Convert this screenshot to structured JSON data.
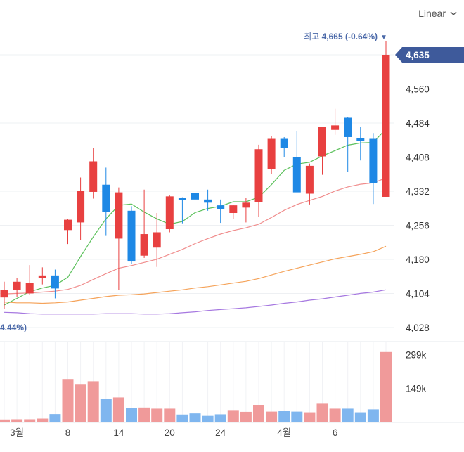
{
  "toolbar": {
    "scale_label": "Linear"
  },
  "price_panel": {
    "y_ticks": [
      "4,635",
      "4,560",
      "4,484",
      "4,408",
      "4,332",
      "4,256",
      "4,180",
      "4,104",
      "4,028"
    ],
    "current_price_label": "4,635",
    "high_marker": {
      "prefix": "최고",
      "value": "4,665 (-0.64%)",
      "arrow": "▼"
    },
    "low_marker": {
      "value": "4.44%)"
    }
  },
  "volume_panel": {
    "y_ticks": [
      "299k",
      "149k"
    ]
  },
  "x_ticks": [
    "3월",
    "8",
    "14",
    "20",
    "24",
    "4월",
    "6"
  ],
  "colors": {
    "up": "#e84040",
    "down": "#1e88e5",
    "flat": "#c0593f",
    "ma_short": "#5cc15c",
    "ma_mid": "#f08c8c",
    "ma_long": "#f5a35a",
    "ma_xlong": "#a678e0",
    "badge": "#3e5a9b",
    "marker_text": "#4a68a8"
  },
  "chart_data": {
    "type": "candlestick",
    "ylim": [
      4028,
      4700
    ],
    "candles": [
      {
        "o": 4095,
        "h": 4130,
        "l": 4070,
        "c": 4112
      },
      {
        "o": 4112,
        "h": 4138,
        "l": 4096,
        "c": 4130
      },
      {
        "o": 4104,
        "h": 4167,
        "l": 4100,
        "c": 4128
      },
      {
        "o": 4138,
        "h": 4162,
        "l": 4124,
        "c": 4144
      },
      {
        "o": 4144,
        "h": 4157,
        "l": 4093,
        "c": 4115
      },
      {
        "o": 4245,
        "h": 4270,
        "l": 4214,
        "c": 4268
      },
      {
        "o": 4262,
        "h": 4362,
        "l": 4222,
        "c": 4332
      },
      {
        "o": 4330,
        "h": 4428,
        "l": 4315,
        "c": 4398
      },
      {
        "o": 4346,
        "h": 4384,
        "l": 4232,
        "c": 4286
      },
      {
        "o": 4226,
        "h": 4340,
        "l": 4112,
        "c": 4329
      },
      {
        "o": 4288,
        "h": 4298,
        "l": 4170,
        "c": 4175
      },
      {
        "o": 4188,
        "h": 4335,
        "l": 4183,
        "c": 4236
      },
      {
        "o": 4206,
        "h": 4283,
        "l": 4163,
        "c": 4240
      },
      {
        "o": 4247,
        "h": 4322,
        "l": 4240,
        "c": 4320
      },
      {
        "o": 4316,
        "h": 4318,
        "l": 4260,
        "c": 4312
      },
      {
        "o": 4327,
        "h": 4329,
        "l": 4290,
        "c": 4313
      },
      {
        "o": 4313,
        "h": 4335,
        "l": 4288,
        "c": 4306
      },
      {
        "o": 4300,
        "h": 4313,
        "l": 4261,
        "c": 4292
      },
      {
        "o": 4283,
        "h": 4301,
        "l": 4270,
        "c": 4300
      },
      {
        "o": 4295,
        "h": 4316,
        "l": 4262,
        "c": 4306
      },
      {
        "o": 4308,
        "h": 4435,
        "l": 4275,
        "c": 4425
      },
      {
        "o": 4380,
        "h": 4455,
        "l": 4370,
        "c": 4448
      },
      {
        "o": 4448,
        "h": 4452,
        "l": 4407,
        "c": 4427
      },
      {
        "o": 4408,
        "h": 4465,
        "l": 4330,
        "c": 4329
      },
      {
        "o": 4326,
        "h": 4393,
        "l": 4302,
        "c": 4388
      },
      {
        "o": 4409,
        "h": 4475,
        "l": 4368,
        "c": 4475
      },
      {
        "o": 4468,
        "h": 4515,
        "l": 4457,
        "c": 4478
      },
      {
        "o": 4495,
        "h": 4496,
        "l": 4375,
        "c": 4452
      },
      {
        "o": 4450,
        "h": 4475,
        "l": 4400,
        "c": 4443
      },
      {
        "o": 4448,
        "h": 4461,
        "l": 4303,
        "c": 4349
      },
      {
        "o": 4319,
        "h": 4665,
        "l": 4319,
        "c": 4635
      }
    ],
    "ma_short": [
      4078,
      4093,
      4108,
      4116,
      4122,
      4140,
      4186,
      4230,
      4270,
      4300,
      4303,
      4285,
      4270,
      4258,
      4264,
      4284,
      4293,
      4298,
      4308,
      4308,
      4318,
      4346,
      4378,
      4392,
      4396,
      4410,
      4422,
      4434,
      4439,
      4440,
      4470
    ],
    "ma_mid": [
      4103,
      4104,
      4105,
      4107,
      4109,
      4113,
      4122,
      4135,
      4148,
      4160,
      4166,
      4173,
      4180,
      4191,
      4202,
      4215,
      4226,
      4236,
      4244,
      4250,
      4258,
      4273,
      4289,
      4302,
      4311,
      4320,
      4332,
      4341,
      4347,
      4350,
      4361
    ],
    "ma_long": [
      4085,
      4083,
      4083,
      4082,
      4083,
      4085,
      4089,
      4093,
      4097,
      4100,
      4101,
      4103,
      4106,
      4109,
      4112,
      4116,
      4119,
      4123,
      4127,
      4131,
      4137,
      4145,
      4153,
      4160,
      4167,
      4174,
      4181,
      4186,
      4191,
      4197,
      4209
    ],
    "ma_xlong": [
      4062,
      4061,
      4059,
      4058,
      4058,
      4058,
      4058,
      4058,
      4059,
      4059,
      4059,
      4058,
      4058,
      4059,
      4061,
      4063,
      4066,
      4068,
      4070,
      4072,
      4075,
      4078,
      4082,
      4085,
      4089,
      4092,
      4096,
      4100,
      4104,
      4107,
      4112
    ],
    "volume": [
      10,
      11,
      11,
      14,
      34,
      190,
      168,
      180,
      100,
      108,
      60,
      63,
      58,
      58,
      32,
      37,
      26,
      33,
      52,
      44,
      75,
      45,
      50,
      45,
      42,
      80,
      58,
      58,
      42,
      55,
      310
    ],
    "volume_ylim": [
      0,
      350
    ],
    "x_tick_index": [
      1,
      5,
      9,
      13,
      17,
      22,
      26
    ]
  }
}
